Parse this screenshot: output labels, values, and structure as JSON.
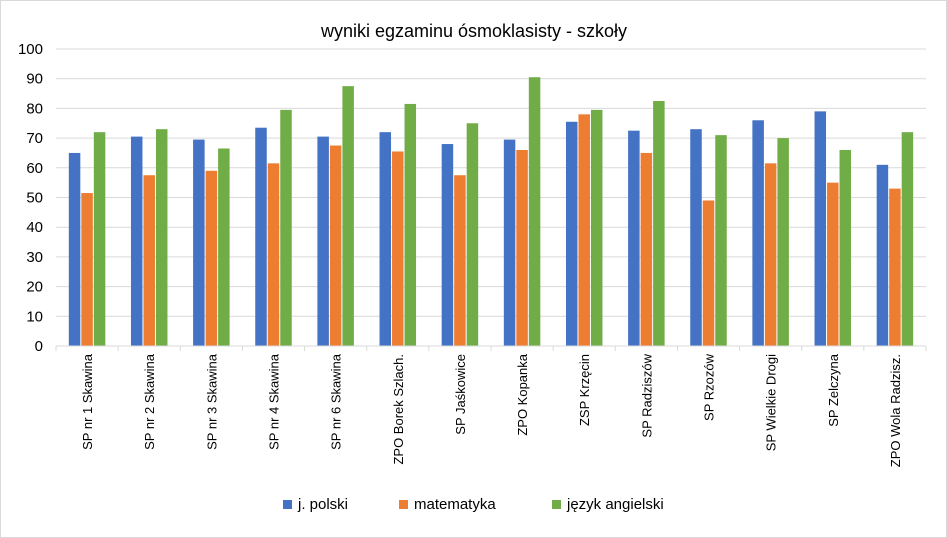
{
  "chart_data": {
    "type": "bar",
    "title": "wyniki egzaminu  ósmoklasisty - szkoły",
    "categories": [
      "SP nr 1 Skawina",
      "SP nr 2 Skawina",
      "SP nr 3 Skawina",
      "SP nr 4 Skawina",
      "SP nr 6 Skawina",
      "ZPO Borek Szlach.",
      "SP Jaśkowice",
      "ZPO Kopanka",
      "ZSP Krzęcin",
      "SP Radziszów",
      "SP Rzozów",
      "SP Wielkie Drogi",
      "SP Zelczyna",
      "ZPO Wola Radzisz."
    ],
    "series": [
      {
        "name": "j. polski",
        "color": "#4472c4",
        "values": [
          65,
          70.5,
          69.5,
          73.5,
          70.5,
          72,
          68,
          69.5,
          75.5,
          72.5,
          73,
          76,
          79,
          61
        ]
      },
      {
        "name": "matematyka",
        "color": "#ed7d31",
        "values": [
          51.5,
          57.5,
          59,
          61.5,
          67.5,
          65.5,
          57.5,
          66,
          78,
          65,
          49,
          61.5,
          55,
          53
        ]
      },
      {
        "name": "język angielski",
        "color": "#70ad47",
        "values": [
          72,
          73,
          66.5,
          79.5,
          87.5,
          81.5,
          75,
          90.5,
          79.5,
          82.5,
          71,
          70,
          66,
          72
        ]
      }
    ],
    "yticks": [
      "0",
      "10",
      "20",
      "30",
      "40",
      "50",
      "60",
      "70",
      "80",
      "90",
      "100"
    ],
    "ylim": [
      0,
      100
    ],
    "xlabel": "",
    "ylabel": "",
    "grid": true,
    "legend": "bottom"
  }
}
